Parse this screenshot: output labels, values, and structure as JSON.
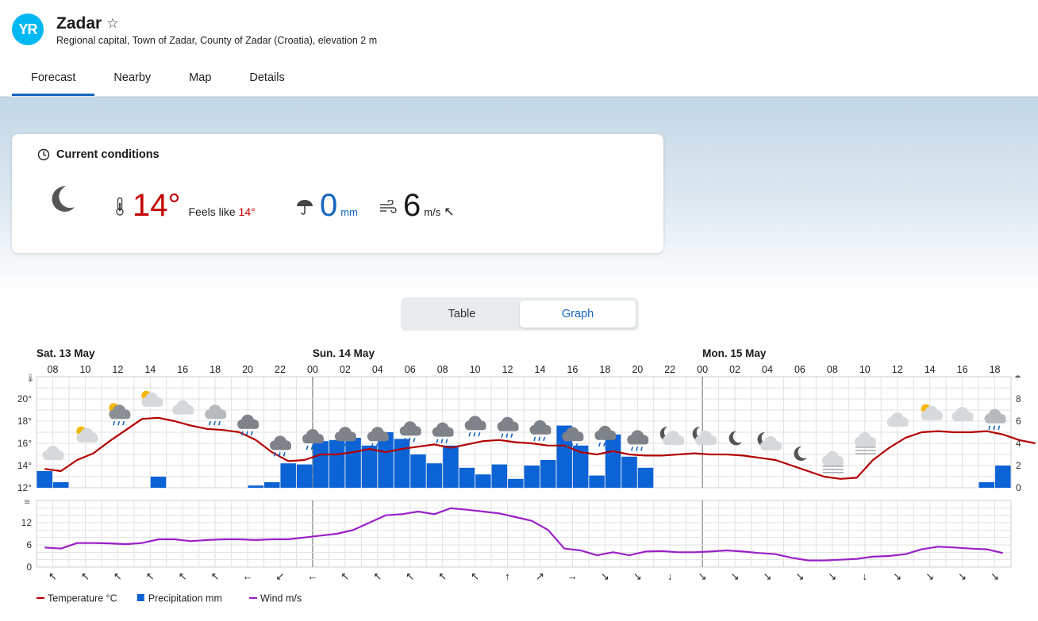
{
  "app": {
    "logo_text": "YR",
    "location": "Zadar",
    "star_icon": "☆",
    "description": "Regional capital, Town of Zadar, County of Zadar (Croatia), elevation 2 m"
  },
  "tabs": [
    {
      "label": "Forecast",
      "active": true
    },
    {
      "label": "Nearby",
      "active": false
    },
    {
      "label": "Map",
      "active": false
    },
    {
      "label": "Details",
      "active": false
    }
  ],
  "current": {
    "heading": "Current conditions",
    "symbol": "moon-icon",
    "temperature": "14°",
    "feels_like_label": "Feels like",
    "feels_like_value": "14°",
    "precipitation": "0",
    "precipitation_unit": "mm",
    "wind": "6",
    "wind_unit": "m/s",
    "wind_arrow": "↖"
  },
  "view_toggle": {
    "table": "Table",
    "graph": "Graph",
    "selected": "Graph"
  },
  "chart_data": {
    "type": "line",
    "days": [
      {
        "label": "Sat. 13 May",
        "start_hour_index": 0
      },
      {
        "label": "Sun. 14 May",
        "start_hour_index": 17
      },
      {
        "label": "Mon. 15 May",
        "start_hour_index": 41
      }
    ],
    "hour_labels": [
      "08",
      "10",
      "12",
      "14",
      "16",
      "18",
      "20",
      "22",
      "00",
      "02",
      "04",
      "06",
      "08",
      "10",
      "12",
      "14",
      "16",
      "18",
      "20",
      "22",
      "00",
      "02",
      "04",
      "06",
      "08",
      "10",
      "12",
      "14",
      "16",
      "18"
    ],
    "start_hour": 7,
    "hours_count": 60,
    "temperature": {
      "name": "Temperature °C",
      "color": "#b30000",
      "axis_ticks": [
        "12°",
        "14°",
        "16°",
        "18°",
        "20°"
      ],
      "ylim": [
        12,
        22
      ],
      "points": [
        [
          7,
          13.7
        ],
        [
          8,
          13.5
        ],
        [
          9,
          14.5
        ],
        [
          10,
          15.1
        ],
        [
          11,
          16.2
        ],
        [
          12,
          17.2
        ],
        [
          13,
          18.2
        ],
        [
          14,
          18.3
        ],
        [
          15,
          18.0
        ],
        [
          16,
          17.6
        ],
        [
          17,
          17.3
        ],
        [
          18,
          17.2
        ],
        [
          19,
          17.0
        ],
        [
          20,
          16.3
        ],
        [
          21,
          15.2
        ],
        [
          22,
          14.4
        ],
        [
          23,
          14.5
        ],
        [
          0,
          15.0
        ],
        [
          1,
          15.0
        ],
        [
          2,
          15.2
        ],
        [
          3,
          15.5
        ],
        [
          4,
          15.2
        ],
        [
          5,
          15.5
        ],
        [
          6,
          15.7
        ],
        [
          7,
          15.9
        ],
        [
          8,
          15.6
        ],
        [
          9,
          15.9
        ],
        [
          10,
          16.2
        ],
        [
          11,
          16.3
        ],
        [
          12,
          16.1
        ],
        [
          13,
          16.0
        ],
        [
          14,
          15.8
        ],
        [
          15,
          15.8
        ],
        [
          16,
          15.2
        ],
        [
          17,
          15.0
        ],
        [
          18,
          15.3
        ],
        [
          19,
          15.0
        ],
        [
          20,
          14.9
        ],
        [
          21,
          14.9
        ],
        [
          22,
          15.0
        ],
        [
          23,
          15.1
        ],
        [
          0,
          15.0
        ],
        [
          1,
          15.0
        ],
        [
          2,
          14.9
        ],
        [
          3,
          14.7
        ],
        [
          4,
          14.5
        ],
        [
          5,
          14.0
        ],
        [
          6,
          13.5
        ],
        [
          7,
          13.0
        ],
        [
          8,
          12.8
        ],
        [
          9,
          12.9
        ],
        [
          10,
          14.5
        ],
        [
          11,
          15.6
        ],
        [
          12,
          16.5
        ],
        [
          13,
          17.0
        ],
        [
          14,
          17.1
        ],
        [
          15,
          17.0
        ],
        [
          16,
          17.0
        ],
        [
          17,
          17.1
        ],
        [
          18,
          16.8
        ],
        [
          19,
          16.3
        ],
        [
          20,
          16.0
        ]
      ]
    },
    "precipitation": {
      "name": "Precipitation mm",
      "color": "#0b63d6",
      "axis_ticks": [
        "0",
        "2",
        "4",
        "6",
        "8"
      ],
      "ylim": [
        0,
        10
      ],
      "values": [
        1.5,
        0.5,
        0,
        0,
        0,
        0,
        0,
        1.0,
        0,
        0,
        0,
        0,
        0,
        0.2,
        0.5,
        2.2,
        2.1,
        4.2,
        4.3,
        4.5,
        3.8,
        5.0,
        4.4,
        3.0,
        2.2,
        3.8,
        1.8,
        1.2,
        2.1,
        0.8,
        2.0,
        2.5,
        5.6,
        3.8,
        1.1,
        4.8,
        2.8,
        1.8,
        0,
        0,
        0,
        0,
        0,
        0,
        0,
        0,
        0,
        0,
        0,
        0,
        0,
        0,
        0,
        0,
        0,
        0,
        0,
        0,
        0.5,
        2.0
      ]
    },
    "wind": {
      "name": "Wind m/s",
      "color": "#9b1fc7",
      "axis_ticks": [
        "0",
        "6",
        "12"
      ],
      "ylim": [
        0,
        18
      ],
      "values": [
        5.3,
        5.0,
        6.5,
        6.5,
        6.4,
        6.2,
        6.5,
        7.5,
        7.5,
        7.0,
        7.3,
        7.5,
        7.5,
        7.3,
        7.5,
        7.5,
        8.0,
        8.5,
        9.0,
        10.0,
        12.0,
        14.0,
        14.3,
        15.0,
        14.3,
        15.9,
        15.5,
        15.0,
        14.5,
        13.5,
        12.5,
        10.0,
        5.0,
        4.5,
        3.2,
        4.0,
        3.2,
        4.2,
        4.3,
        4.0,
        4.0,
        4.2,
        4.5,
        4.2,
        3.8,
        3.5,
        2.5,
        1.8,
        1.8,
        2.0,
        2.2,
        2.8,
        3.0,
        3.5,
        4.8,
        5.5,
        5.3,
        5.0,
        4.8,
        3.8
      ]
    },
    "wind_arrows": [
      "↖",
      "↖",
      "↖",
      "↖",
      "↖",
      "↖",
      "←",
      "↙",
      "←",
      "↖",
      "↖",
      "↖",
      "↖",
      "↖",
      "↑",
      "↗",
      "→",
      "↘",
      "↘",
      "↓",
      "↘",
      "↘",
      "↘",
      "↘",
      "↘",
      "↓",
      "↘",
      "↘",
      "↘",
      "↘"
    ],
    "weather_symbols": [
      {
        "hour_index": 1,
        "symbol": "cloud"
      },
      {
        "hour_index": 3,
        "symbol": "partly-cloudy"
      },
      {
        "hour_index": 5,
        "symbol": "partly-cloudy-rain"
      },
      {
        "hour_index": 7,
        "symbol": "partly-cloudy"
      },
      {
        "hour_index": 9,
        "symbol": "cloud"
      },
      {
        "hour_index": 11,
        "symbol": "cloud-rain"
      },
      {
        "hour_index": 13,
        "symbol": "dark-cloud-rain"
      },
      {
        "hour_index": 15,
        "symbol": "dark-cloud-rain"
      },
      {
        "hour_index": 17,
        "symbol": "dark-cloud-rain"
      },
      {
        "hour_index": 19,
        "symbol": "dark-cloud-rain"
      },
      {
        "hour_index": 21,
        "symbol": "dark-cloud-rain"
      },
      {
        "hour_index": 23,
        "symbol": "dark-cloud-rain"
      },
      {
        "hour_index": 25,
        "symbol": "dark-cloud-rain"
      },
      {
        "hour_index": 27,
        "symbol": "dark-cloud-rain"
      },
      {
        "hour_index": 29,
        "symbol": "dark-cloud-rain"
      },
      {
        "hour_index": 31,
        "symbol": "dark-cloud-rain"
      },
      {
        "hour_index": 33,
        "symbol": "dark-cloud-rain"
      },
      {
        "hour_index": 35,
        "symbol": "dark-cloud-rain"
      },
      {
        "hour_index": 37,
        "symbol": "dark-cloud-rain"
      },
      {
        "hour_index": 39,
        "symbol": "moon-cloud"
      },
      {
        "hour_index": 41,
        "symbol": "moon-cloud"
      },
      {
        "hour_index": 43,
        "symbol": "moon"
      },
      {
        "hour_index": 45,
        "symbol": "moon-cloud"
      },
      {
        "hour_index": 47,
        "symbol": "moon"
      },
      {
        "hour_index": 49,
        "symbol": "fog"
      },
      {
        "hour_index": 51,
        "symbol": "fog"
      },
      {
        "hour_index": 53,
        "symbol": "cloud"
      },
      {
        "hour_index": 55,
        "symbol": "partly-cloudy"
      },
      {
        "hour_index": 57,
        "symbol": "cloud"
      },
      {
        "hour_index": 59,
        "symbol": "cloud-rain"
      }
    ],
    "legend": [
      {
        "name": "Temperature °C",
        "color": "#b30000",
        "kind": "line"
      },
      {
        "name": "Precipitation mm",
        "color": "#0b63d6",
        "kind": "square"
      },
      {
        "name": "Wind m/s",
        "color": "#9b1fc7",
        "kind": "line"
      }
    ],
    "icons": {
      "thermometer": "thermometer-icon",
      "umbrella": "umbrella-icon",
      "wind": "wind-icon"
    }
  }
}
